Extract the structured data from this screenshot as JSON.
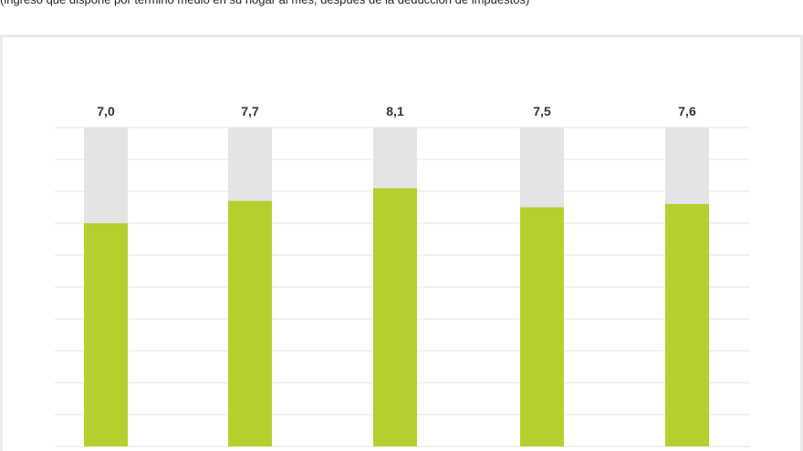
{
  "subtitle": "(ingreso que dispone por término medio en su hogar al mes, después de la deducción de impuestos)",
  "colors": {
    "bar_value": "#b5cf2e",
    "bar_track": "#e3e4e6",
    "gridline": "#e6e6e6",
    "frame": "#e9eaec",
    "label": "#333333"
  },
  "chart_data": {
    "type": "bar",
    "title": "",
    "xlabel": "",
    "ylabel": "",
    "categories": [
      "",
      "",
      "",
      "",
      ""
    ],
    "values": [
      7.0,
      7.7,
      8.1,
      7.5,
      7.6
    ],
    "value_labels": [
      "7,0",
      "7,7",
      "8,1",
      "7,5",
      "7,6"
    ],
    "ylim": [
      0,
      10
    ],
    "grid": true,
    "legend": "none"
  }
}
